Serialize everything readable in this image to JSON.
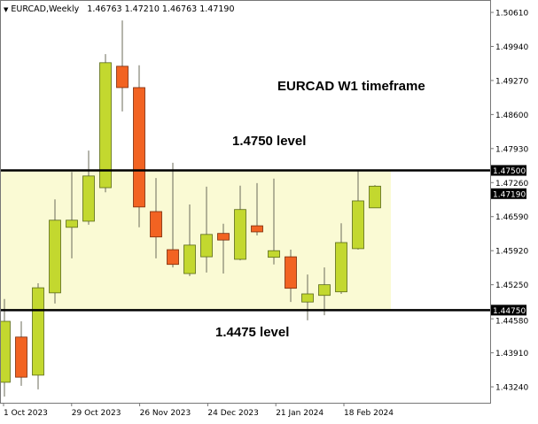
{
  "header": {
    "arrow_icon": "triangle-down-icon",
    "symbol": "EURCAD,Weekly",
    "ohlc": "1.46763 1.47210 1.46763 1.47190"
  },
  "annotations": {
    "title": "EURCAD W1 timeframe",
    "upper_level": "1.4750 level",
    "lower_level": "1.4475 level"
  },
  "colors": {
    "bull": "#c3d82f",
    "bear": "#f26322",
    "zone": "#fafad4",
    "level_line": "#000000"
  },
  "chart_data": {
    "type": "candlestick",
    "ylim": [
      1.4305,
      1.5085
    ],
    "y_ticks": [
      "1.50610",
      "1.49940",
      "1.49270",
      "1.48600",
      "1.47930",
      "1.47260",
      "1.46590",
      "1.45920",
      "1.45250",
      "1.44580",
      "1.43910",
      "1.43240"
    ],
    "x_ticks": [
      {
        "label": "1 Oct 2023",
        "index": 0
      },
      {
        "label": "29 Oct 2023",
        "index": 4
      },
      {
        "label": "26 Nov 2023",
        "index": 8
      },
      {
        "label": "24 Dec 2023",
        "index": 12
      },
      {
        "label": "21 Jan 2024",
        "index": 16
      },
      {
        "label": "18 Feb 2024",
        "index": 20
      }
    ],
    "levels": [
      {
        "price": 1.475,
        "label": "1.47500"
      },
      {
        "price": 1.4475,
        "label": "1.44750"
      }
    ],
    "current_price_label": "1.47190",
    "zone": {
      "from": 1.4475,
      "to": 1.475,
      "end_index": 23
    },
    "candles": [
      {
        "o": 1.4333,
        "h": 1.4497,
        "l": 1.4305,
        "c": 1.4453
      },
      {
        "o": 1.4422,
        "h": 1.4453,
        "l": 1.4326,
        "c": 1.4343
      },
      {
        "o": 1.4347,
        "h": 1.4528,
        "l": 1.4319,
        "c": 1.4519
      },
      {
        "o": 1.4509,
        "h": 1.4693,
        "l": 1.4488,
        "c": 1.4652
      },
      {
        "o": 1.4638,
        "h": 1.4747,
        "l": 1.4577,
        "c": 1.4652
      },
      {
        "o": 1.465,
        "h": 1.4789,
        "l": 1.4643,
        "c": 1.4739
      },
      {
        "o": 1.4716,
        "h": 1.4979,
        "l": 1.4707,
        "c": 1.4962
      },
      {
        "o": 1.4955,
        "h": 1.5045,
        "l": 1.4866,
        "c": 1.4913
      },
      {
        "o": 1.4913,
        "h": 1.4957,
        "l": 1.4638,
        "c": 1.4678
      },
      {
        "o": 1.4669,
        "h": 1.4735,
        "l": 1.4577,
        "c": 1.4619
      },
      {
        "o": 1.4594,
        "h": 1.4765,
        "l": 1.4559,
        "c": 1.4565
      },
      {
        "o": 1.4547,
        "h": 1.4683,
        "l": 1.4542,
        "c": 1.4603
      },
      {
        "o": 1.458,
        "h": 1.4718,
        "l": 1.4549,
        "c": 1.4624
      },
      {
        "o": 1.4626,
        "h": 1.4645,
        "l": 1.4547,
        "c": 1.4613
      },
      {
        "o": 1.4575,
        "h": 1.472,
        "l": 1.4573,
        "c": 1.4673
      },
      {
        "o": 1.4641,
        "h": 1.4725,
        "l": 1.4622,
        "c": 1.4629
      },
      {
        "o": 1.4579,
        "h": 1.4734,
        "l": 1.4565,
        "c": 1.4592
      },
      {
        "o": 1.458,
        "h": 1.4594,
        "l": 1.4491,
        "c": 1.4518
      },
      {
        "o": 1.4491,
        "h": 1.4545,
        "l": 1.4455,
        "c": 1.4507
      },
      {
        "o": 1.4504,
        "h": 1.4559,
        "l": 1.4465,
        "c": 1.4525
      },
      {
        "o": 1.4511,
        "h": 1.4646,
        "l": 1.4507,
        "c": 1.4608
      },
      {
        "o": 1.4596,
        "h": 1.4749,
        "l": 1.4594,
        "c": 1.469
      },
      {
        "o": 1.46763,
        "h": 1.4721,
        "l": 1.46763,
        "c": 1.4719
      }
    ]
  }
}
